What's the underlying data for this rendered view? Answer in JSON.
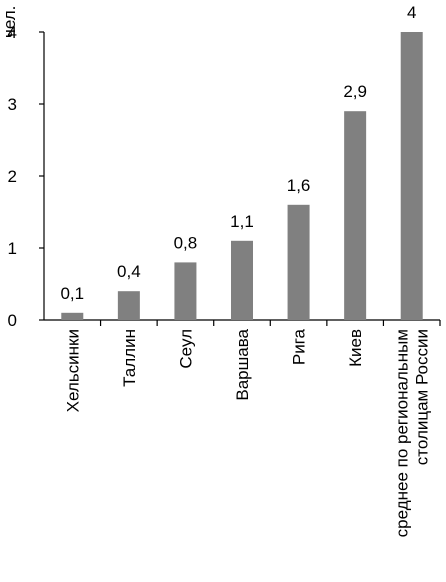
{
  "chart_data": {
    "type": "bar",
    "ylabel": "чел.",
    "ylim": [
      0,
      4
    ],
    "yticks": [
      "0",
      "1",
      "2",
      "3",
      "4"
    ],
    "grid": false,
    "bar_color": "#808080",
    "categories": [
      "Хельсинки",
      "Таллин",
      "Сеул",
      "Варшава",
      "Рига",
      "Киев",
      [
        "среднее по региональным",
        "столицам России"
      ]
    ],
    "values": [
      0.1,
      0.4,
      0.8,
      1.1,
      1.6,
      2.9,
      4
    ],
    "value_labels": [
      "0,1",
      "0,4",
      "0,8",
      "1,1",
      "1,6",
      "2,9",
      "4"
    ]
  }
}
